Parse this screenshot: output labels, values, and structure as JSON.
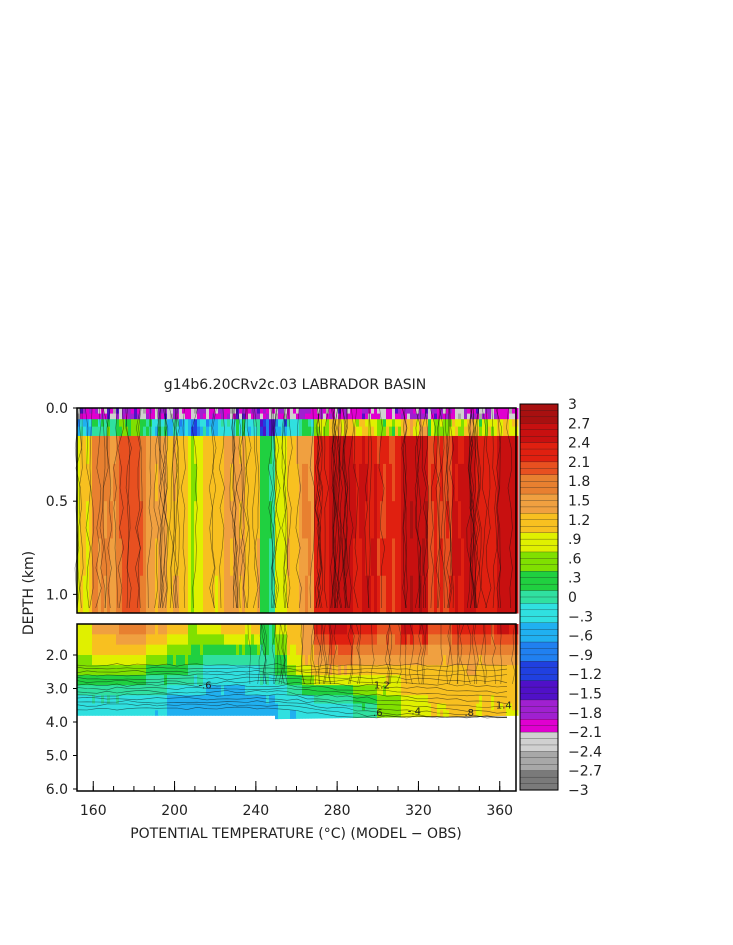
{
  "chart_data": {
    "type": "heatmap",
    "title": "g14b6.20CRv2c.03 LABRADOR BASIN",
    "xlabel": "POTENTIAL TEMPERATURE (°C) (MODEL − OBS)",
    "ylabel": "DEPTH (km)",
    "x_ticks": [
      "160",
      "200",
      "240",
      "280",
      "320",
      "360"
    ],
    "x_range": [
      152,
      368
    ],
    "upper_panel": {
      "y_ticks": [
        "0.0",
        "0.5",
        "1.0"
      ],
      "y_range": [
        0.0,
        1.1
      ]
    },
    "lower_panel": {
      "y_ticks": [
        "2.0",
        "3.0",
        "4.0",
        "5.0",
        "6.0"
      ],
      "y_range": [
        1.1,
        6.0
      ],
      "bottom_of_data_km": 3.85
    },
    "colorbar": {
      "tick_labels": [
        "3",
        "2.7",
        "2.4",
        "2.1",
        "1.8",
        "1.5",
        "1.2",
        ".9",
        ".6",
        ".3",
        "0",
        "−.3",
        "−.6",
        "−.9",
        "−1.2",
        "−1.5",
        "−1.8",
        "−2.1",
        "−2.4",
        "−2.7",
        "−3"
      ],
      "range": [
        -3,
        3
      ],
      "colors": [
        "#7a7a7a",
        "#a8a8a8",
        "#d0d0d0",
        "#e000d0",
        "#a020d0",
        "#5010c8",
        "#2040e0",
        "#2080f0",
        "#20b0f0",
        "#30e0e0",
        "#30e0a0",
        "#20d040",
        "#80e000",
        "#e0f000",
        "#f8c020",
        "#f0a040",
        "#e88030",
        "#e85020",
        "#e02010",
        "#c81010",
        "#a81010"
      ]
    },
    "sections": [
      {
        "x_from": 152,
        "x_to": 160,
        "upper": 1.0,
        "lower": 0.6,
        "deep": -0.3
      },
      {
        "x_from": 160,
        "x_to": 172,
        "upper": 1.6,
        "lower": 0.7,
        "deep": -0.2
      },
      {
        "x_from": 172,
        "x_to": 186,
        "upper": 1.9,
        "lower": 0.6,
        "deep": -0.3
      },
      {
        "x_from": 186,
        "x_to": 196,
        "upper": 1.4,
        "lower": 0.5,
        "deep": -0.4
      },
      {
        "x_from": 196,
        "x_to": 206,
        "upper": 1.2,
        "lower": 0.3,
        "deep": -0.5
      },
      {
        "x_from": 206,
        "x_to": 214,
        "upper": 0.8,
        "lower": 0.2,
        "deep": -0.6
      },
      {
        "x_from": 214,
        "x_to": 224,
        "upper": 1.1,
        "lower": -0.1,
        "deep": -0.6
      },
      {
        "x_from": 224,
        "x_to": 234,
        "upper": 1.4,
        "lower": -0.2,
        "deep": -0.6
      },
      {
        "x_from": 234,
        "x_to": 242,
        "upper": 1.2,
        "lower": -0.1,
        "deep": -0.5
      },
      {
        "x_from": 242,
        "x_to": 250,
        "upper": 0.2,
        "lower": 0.1,
        "deep": -0.5
      },
      {
        "x_from": 250,
        "x_to": 256,
        "upper": 0.9,
        "lower": 0.3,
        "deep": -0.4
      },
      {
        "x_from": 256,
        "x_to": 262,
        "upper": 1.3,
        "lower": 0.9,
        "deep": -0.4
      },
      {
        "x_from": 262,
        "x_to": 268,
        "upper": 1.5,
        "lower": 1.2,
        "deep": -0.3
      },
      {
        "x_from": 268,
        "x_to": 276,
        "upper": 2.3,
        "lower": 1.4,
        "deep": -0.2
      },
      {
        "x_from": 276,
        "x_to": 288,
        "upper": 2.6,
        "lower": 1.5,
        "deep": -0.2
      },
      {
        "x_from": 288,
        "x_to": 300,
        "upper": 2.4,
        "lower": 1.4,
        "deep": 0.1
      },
      {
        "x_from": 300,
        "x_to": 312,
        "upper": 2.2,
        "lower": 1.3,
        "deep": 0.5
      },
      {
        "x_from": 312,
        "x_to": 324,
        "upper": 2.6,
        "lower": 1.3,
        "deep": 0.9
      },
      {
        "x_from": 324,
        "x_to": 336,
        "upper": 2.1,
        "lower": 1.2,
        "deep": 1.0
      },
      {
        "x_from": 336,
        "x_to": 348,
        "upper": 2.5,
        "lower": 1.3,
        "deep": 1.1
      },
      {
        "x_from": 348,
        "x_to": 358,
        "upper": 2.3,
        "lower": 1.2,
        "deep": 1.0
      },
      {
        "x_from": 358,
        "x_to": 368,
        "upper": 2.6,
        "lower": 1.3,
        "deep": 1.0
      }
    ],
    "surface_value": -2.0,
    "contour_labels": [
      {
        "text": "-.4",
        "x": 318,
        "depth": 3.78
      },
      {
        "text": ".6",
        "x": 300,
        "depth": 3.82
      },
      {
        "text": ".8",
        "x": 345,
        "depth": 3.82
      },
      {
        "text": "1.2",
        "x": 302,
        "depth": 3.0
      },
      {
        "text": "1.4",
        "x": 362,
        "depth": 3.6
      },
      {
        "text": "-.6",
        "x": 215,
        "depth": 3.0
      }
    ]
  }
}
